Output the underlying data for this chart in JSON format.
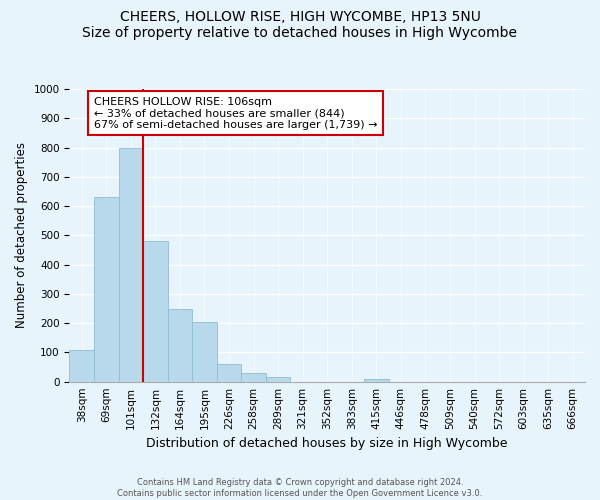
{
  "title": "CHEERS, HOLLOW RISE, HIGH WYCOMBE, HP13 5NU",
  "subtitle": "Size of property relative to detached houses in High Wycombe",
  "xlabel": "Distribution of detached houses by size in High Wycombe",
  "ylabel": "Number of detached properties",
  "bar_labels": [
    "38sqm",
    "69sqm",
    "101sqm",
    "132sqm",
    "164sqm",
    "195sqm",
    "226sqm",
    "258sqm",
    "289sqm",
    "321sqm",
    "352sqm",
    "383sqm",
    "415sqm",
    "446sqm",
    "478sqm",
    "509sqm",
    "540sqm",
    "572sqm",
    "603sqm",
    "635sqm",
    "666sqm"
  ],
  "bar_values": [
    110,
    630,
    800,
    480,
    250,
    205,
    60,
    30,
    15,
    0,
    0,
    0,
    10,
    0,
    0,
    0,
    0,
    0,
    0,
    0,
    0
  ],
  "bar_color": "#b8d9eb",
  "bar_edge_color": "#90bdd4",
  "vline_x_idx": 2,
  "vline_color": "#cc0000",
  "ylim": [
    0,
    1000
  ],
  "yticks": [
    0,
    100,
    200,
    300,
    400,
    500,
    600,
    700,
    800,
    900,
    1000
  ],
  "annotation_title": "CHEERS HOLLOW RISE: 106sqm",
  "annotation_line1": "← 33% of detached houses are smaller (844)",
  "annotation_line2": "67% of semi-detached houses are larger (1,739) →",
  "annotation_box_facecolor": "#ffffff",
  "annotation_box_edgecolor": "#cc0000",
  "footer1": "Contains HM Land Registry data © Crown copyright and database right 2024.",
  "footer2": "Contains public sector information licensed under the Open Government Licence v3.0.",
  "bg_color": "#e8f4fb",
  "plot_bg_color": "#e8f4fb",
  "grid_color": "#ffffff",
  "title_fontsize": 10,
  "subtitle_fontsize": 9,
  "ylabel_fontsize": 8.5,
  "xlabel_fontsize": 9,
  "tick_fontsize": 7.5
}
